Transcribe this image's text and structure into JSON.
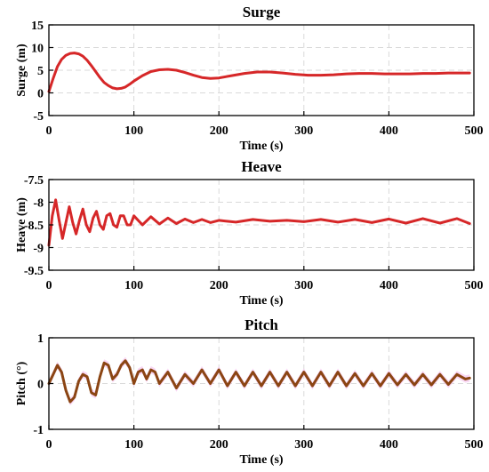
{
  "chart_data": [
    {
      "type": "line",
      "title": "Surge",
      "xlabel": "Time (s)",
      "ylabel": "Surge (m)",
      "xlim": [
        0,
        500
      ],
      "ylim": [
        -5,
        15
      ],
      "xticks": [
        0,
        100,
        200,
        300,
        400,
        500
      ],
      "yticks": [
        -5,
        0,
        5,
        10,
        15
      ],
      "grid": true,
      "color": "#d62728",
      "series": [
        {
          "x": [
            0,
            5,
            10,
            15,
            20,
            25,
            30,
            35,
            40,
            45,
            50,
            55,
            60,
            65,
            70,
            75,
            80,
            85,
            90,
            95,
            100,
            110,
            120,
            130,
            140,
            150,
            160,
            170,
            180,
            190,
            200,
            215,
            230,
            245,
            260,
            275,
            290,
            305,
            320,
            335,
            350,
            365,
            380,
            395,
            410,
            425,
            440,
            455,
            470,
            485,
            495
          ],
          "y": [
            0.3,
            3.2,
            5.8,
            7.4,
            8.3,
            8.7,
            8.8,
            8.6,
            8.1,
            7.2,
            6.0,
            4.7,
            3.4,
            2.3,
            1.6,
            1.1,
            0.9,
            1.0,
            1.3,
            1.9,
            2.6,
            3.8,
            4.7,
            5.1,
            5.2,
            5.0,
            4.5,
            3.9,
            3.4,
            3.2,
            3.3,
            3.8,
            4.3,
            4.6,
            4.6,
            4.4,
            4.1,
            3.9,
            3.9,
            4.0,
            4.2,
            4.3,
            4.3,
            4.2,
            4.2,
            4.2,
            4.3,
            4.3,
            4.4,
            4.4,
            4.4
          ]
        }
      ]
    },
    {
      "type": "line",
      "title": "Heave",
      "xlabel": "Time (s)",
      "ylabel": "Heave (m)",
      "xlim": [
        0,
        500
      ],
      "ylim": [
        -9.5,
        -7.5
      ],
      "xticks": [
        0,
        100,
        200,
        300,
        400,
        500
      ],
      "yticks": [
        -9.5,
        -9,
        -8.5,
        -8,
        -7.5
      ],
      "grid": true,
      "color": "#d62728",
      "series": [
        {
          "x": [
            0,
            4,
            8,
            12,
            16,
            20,
            24,
            28,
            32,
            36,
            40,
            44,
            48,
            52,
            56,
            60,
            64,
            68,
            72,
            76,
            80,
            84,
            88,
            92,
            96,
            100,
            110,
            120,
            130,
            140,
            150,
            160,
            170,
            180,
            190,
            200,
            220,
            240,
            260,
            280,
            300,
            320,
            340,
            360,
            380,
            400,
            420,
            440,
            460,
            480,
            495
          ],
          "y": [
            -8.95,
            -8.3,
            -7.95,
            -8.4,
            -8.8,
            -8.45,
            -8.1,
            -8.45,
            -8.7,
            -8.4,
            -8.15,
            -8.5,
            -8.65,
            -8.35,
            -8.2,
            -8.5,
            -8.6,
            -8.3,
            -8.25,
            -8.5,
            -8.55,
            -8.3,
            -8.3,
            -8.5,
            -8.5,
            -8.3,
            -8.5,
            -8.32,
            -8.48,
            -8.35,
            -8.47,
            -8.37,
            -8.45,
            -8.38,
            -8.45,
            -8.4,
            -8.44,
            -8.38,
            -8.42,
            -8.4,
            -8.43,
            -8.38,
            -8.44,
            -8.38,
            -8.45,
            -8.37,
            -8.46,
            -8.36,
            -8.46,
            -8.36,
            -8.47
          ]
        }
      ]
    },
    {
      "type": "line",
      "title": "Pitch",
      "xlabel": "Time (s)",
      "ylabel": "Pitch (°)",
      "xlim": [
        0,
        500
      ],
      "ylim": [
        -1,
        1
      ],
      "xticks": [
        0,
        100,
        200,
        300,
        400,
        500
      ],
      "yticks": [
        -1,
        0,
        1
      ],
      "grid": true,
      "color": "#8b4513",
      "band_color": "#f7c6ef",
      "series": [
        {
          "x": [
            0,
            5,
            10,
            15,
            20,
            25,
            30,
            35,
            40,
            45,
            50,
            55,
            60,
            65,
            70,
            75,
            80,
            85,
            90,
            95,
            100,
            105,
            110,
            115,
            120,
            125,
            130,
            140,
            150,
            160,
            170,
            180,
            190,
            200,
            210,
            220,
            230,
            240,
            250,
            260,
            270,
            280,
            290,
            300,
            310,
            320,
            330,
            340,
            350,
            360,
            370,
            380,
            390,
            400,
            410,
            420,
            430,
            440,
            450,
            460,
            470,
            480,
            490,
            495
          ],
          "y": [
            0.0,
            0.2,
            0.4,
            0.25,
            -0.15,
            -0.4,
            -0.3,
            0.05,
            0.2,
            0.15,
            -0.2,
            -0.25,
            0.15,
            0.45,
            0.4,
            0.1,
            0.2,
            0.4,
            0.5,
            0.35,
            0.0,
            0.25,
            0.3,
            0.1,
            0.3,
            0.25,
            0.0,
            0.25,
            -0.1,
            0.2,
            0.0,
            0.3,
            0.0,
            0.3,
            -0.05,
            0.25,
            -0.05,
            0.25,
            -0.05,
            0.25,
            -0.05,
            0.25,
            -0.05,
            0.25,
            -0.05,
            0.25,
            -0.05,
            0.25,
            -0.05,
            0.22,
            -0.05,
            0.22,
            -0.05,
            0.22,
            -0.03,
            0.2,
            -0.03,
            0.2,
            -0.03,
            0.2,
            -0.02,
            0.2,
            0.1,
            0.12
          ]
        }
      ]
    }
  ]
}
